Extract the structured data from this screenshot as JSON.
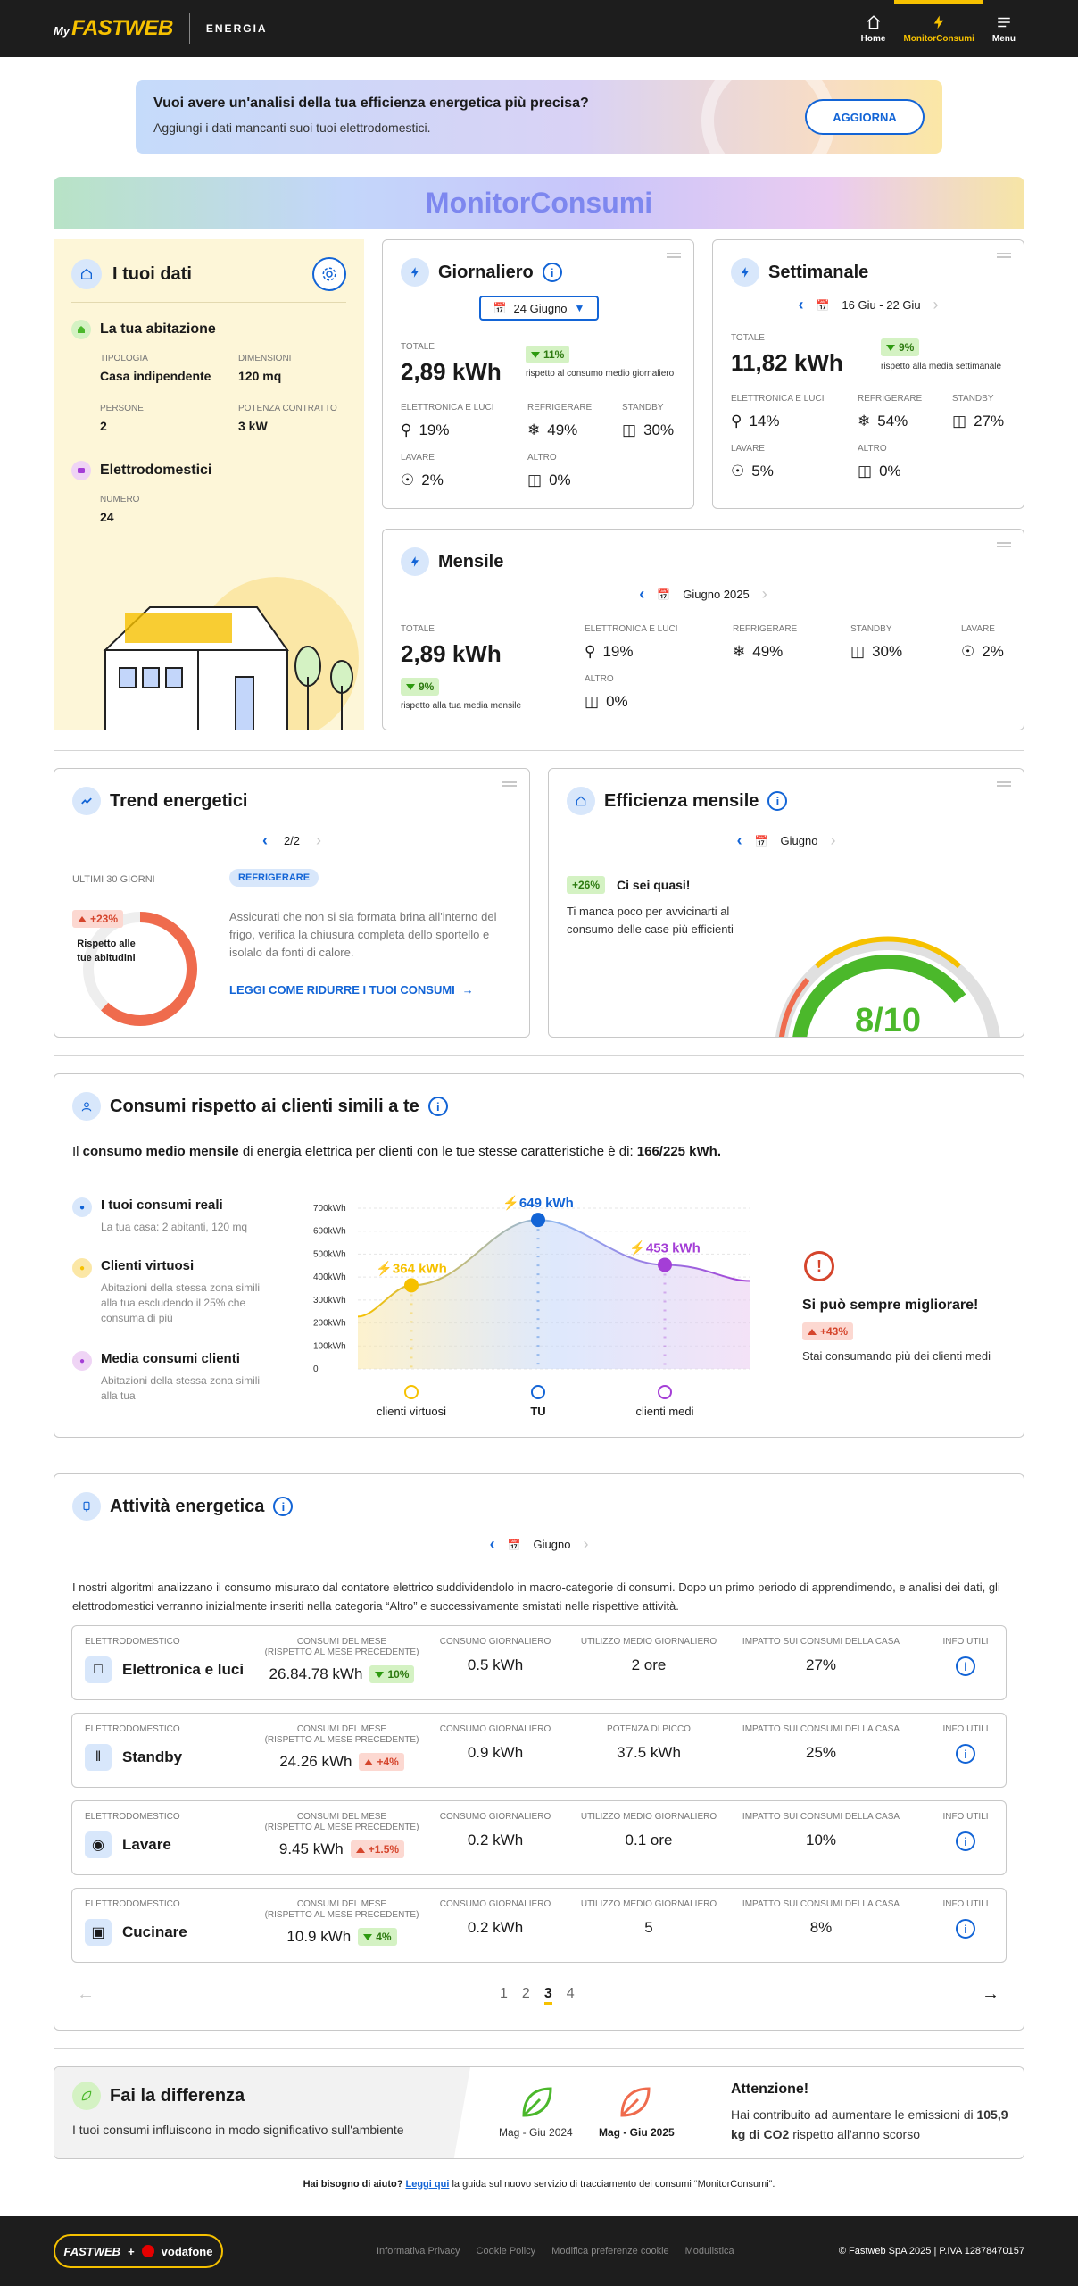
{
  "header": {
    "logo_my": "My",
    "logo_brand": "FASTWEB",
    "section": "ENERGIA",
    "nav": [
      {
        "label": "Home",
        "icon": "home-icon"
      },
      {
        "label": "MonitorConsumi",
        "icon": "bolt-icon",
        "active": true
      },
      {
        "label": "Menu",
        "icon": "menu-icon"
      }
    ]
  },
  "banner": {
    "title": "Vuoi avere un'analisi della tua efficienza energetica più precisa?",
    "subtitle": "Aggiungi i dati mancanti suoi tuoi elettrodomestici.",
    "button": "AGGIORNA"
  },
  "page_title": "MonitorConsumi",
  "your_data": {
    "title": "I tuoi dati",
    "home_title": "La tua abitazione",
    "fields": [
      {
        "label": "TIPOLOGIA",
        "value": "Casa indipendente"
      },
      {
        "label": "DIMENSIONI",
        "value": "120 mq"
      },
      {
        "label": "PERSONE",
        "value": "2"
      },
      {
        "label": "POTENZA CONTRATTO",
        "value": "3 kW"
      }
    ],
    "appliances_title": "Elettrodomestici",
    "appliances_label": "NUMERO",
    "appliances_value": "24"
  },
  "daily": {
    "title": "Giornaliero",
    "date": "24 Giugno",
    "total_label": "TOTALE",
    "total": "2,89 kWh",
    "delta": "11%",
    "delta_note": "rispetto al consumo medio giornaliero",
    "cats": [
      {
        "label": "ELETTRONICA E LUCI",
        "value": "19%",
        "icon": "lamp-icon"
      },
      {
        "label": "REFRIGERARE",
        "value": "49%",
        "icon": "snowflake-icon"
      },
      {
        "label": "STANDBY",
        "value": "30%",
        "icon": "standby-icon"
      },
      {
        "label": "LAVARE",
        "value": "2%",
        "icon": "wash-icon"
      },
      {
        "label": "ALTRO",
        "value": "0%",
        "icon": "other-icon"
      }
    ]
  },
  "weekly": {
    "title": "Settimanale",
    "date": "16 Giu - 22 Giu",
    "total_label": "TOTALE",
    "total": "11,82 kWh",
    "delta": "9%",
    "delta_note": "rispetto alla media settimanale",
    "cats": [
      {
        "label": "ELETTRONICA E LUCI",
        "value": "14%"
      },
      {
        "label": "REFRIGERARE",
        "value": "54%"
      },
      {
        "label": "STANDBY",
        "value": "27%"
      },
      {
        "label": "LAVARE",
        "value": "5%"
      },
      {
        "label": "ALTRO",
        "value": "0%"
      }
    ]
  },
  "monthly": {
    "title": "Mensile",
    "date": "Giugno 2025",
    "total_label": "TOTALE",
    "total": "2,89 kWh",
    "delta": "9%",
    "delta_note": "rispetto alla tua media mensile",
    "cats": [
      {
        "label": "ELETTRONICA E LUCI",
        "value": "19%"
      },
      {
        "label": "REFRIGERARE",
        "value": "49%"
      },
      {
        "label": "STANDBY",
        "value": "30%"
      },
      {
        "label": "LAVARE",
        "value": "2%"
      },
      {
        "label": "ALTRO",
        "value": "0%"
      }
    ]
  },
  "trend": {
    "title": "Trend energetici",
    "page": "2/2",
    "period": "ULTIMI 30 GIORNI",
    "tag": "REFRIGERARE",
    "delta": "+23%",
    "ring_label": "Rispetto alle tue abitudini",
    "ring_fraction": 0.62,
    "text": "Assicurati che non si sia formata brina all'interno del frigo, verifica la chiusura completa dello sportello e isolalo da fonti di calore.",
    "link": "LEGGI COME RIDURRE I TUOI CONSUMI"
  },
  "efficiency": {
    "title": "Efficienza mensile",
    "month": "Giugno",
    "delta": "+26%",
    "headline": "Ci sei quasi!",
    "text": "Ti manca poco per avvicinarti al consumo delle case più efficienti",
    "score": "8/10",
    "score_value": 8,
    "score_max": 10
  },
  "comparison": {
    "title": "Consumi rispetto ai clienti simili a te",
    "intro_a": "Il ",
    "intro_b": "consumo medio mensile",
    "intro_c": " di energia elettrica per clienti con le tue stesse caratteristiche è di: ",
    "intro_d": "166/225 kWh.",
    "legend": [
      {
        "title": "I tuoi consumi reali",
        "sub": "La tua casa: 2 abitanti, 120 mq",
        "color": "#1264d6"
      },
      {
        "title": "Clienti virtuosi",
        "sub": "Abitazioni della stessa zona simili alla tua escludendo il 25% che consuma di più",
        "color": "#f6c100"
      },
      {
        "title": "Media consumi clienti",
        "sub": "Abitazioni della stessa zona simili alla tua",
        "color": "#a43ed6"
      }
    ],
    "side_title": "Si può sempre migliorare!",
    "side_delta": "+43%",
    "side_text": "Stai consumando più dei clienti medi"
  },
  "chart_data": {
    "type": "line",
    "x": [
      "clienti virtuosi",
      "TU",
      "clienti medi"
    ],
    "values": [
      364,
      649,
      453
    ],
    "point_labels": [
      "364 kWh",
      "649 kWh",
      "453 kWh"
    ],
    "colors": [
      "#f6c100",
      "#1264d6",
      "#a43ed6"
    ],
    "y_ticks": [
      "0",
      "100kWh",
      "200kWh",
      "300kWh",
      "400kWh",
      "500kWh",
      "600kWh",
      "700kWh"
    ],
    "ylim": [
      0,
      700
    ]
  },
  "activity": {
    "title": "Attività energetica",
    "month": "Giugno",
    "text": "I nostri algoritmi analizzano il consumo misurato dal contatore elettrico suddividendolo in macro-categorie di consumi. Dopo un primo periodo di apprendimendo, e analisi dei dati, gli elettrodomestici verranno inizialmente inseriti nella categoria “Altro” e successivamente smistati nelle rispettive attività.",
    "rows": [
      {
        "h1": "ELETTRODOMESTICO",
        "name": "Elettronica e luci",
        "h2a": "CONSUMI DEL MESE",
        "h2b": "(rispetto al mese precedente)",
        "monthly": "26.84.78 kWh",
        "delta": "10%",
        "dir": "down",
        "h3": "CONSUMO GIORNALIERO",
        "daily": "0.5 kWh",
        "h4": "UTILIZZO MEDIO GIORNALIERO",
        "v4": "2 ore",
        "h5": "IMPATTO SUI CONSUMI DELLA CASA",
        "impact": "27%",
        "h6": "INFO UTILI"
      },
      {
        "h1": "ELETTRODOMESTICO",
        "name": "Standby",
        "h2a": "CONSUMI DEL MESE",
        "h2b": "(rispetto al mese precedente)",
        "monthly": "24.26 kWh",
        "delta": "+4%",
        "dir": "up",
        "h3": "CONSUMO GIORNALIERO",
        "daily": "0.9 kWh",
        "h4": "POTENZA DI PICCO",
        "v4": "37.5 kWh",
        "h5": "IMPATTO SUI CONSUMI DELLA CASA",
        "impact": "25%",
        "h6": "INFO UTILI"
      },
      {
        "h1": "ELETTRODOMESTICO",
        "name": "Lavare",
        "h2a": "CONSUMI DEL MESE",
        "h2b": "(rispetto al mese precedente)",
        "monthly": "9.45 kWh",
        "delta": "+1.5%",
        "dir": "up",
        "h3": "CONSUMO GIORNALIERO",
        "daily": "0.2 kWh",
        "h4": "UTILIZZO MEDIO GIORNALIERO",
        "v4": "0.1 ore",
        "h5": "IMPATTO SUI CONSUMI DELLA CASA",
        "impact": "10%",
        "h6": "INFO UTILI"
      },
      {
        "h1": "ELETTRODOMESTICO",
        "name": "Cucinare",
        "h2a": "CONSUMI DEL MESE",
        "h2b": "(rispetto al mese precedente)",
        "monthly": "10.9 kWh",
        "delta": "4%",
        "dir": "down",
        "h3": "CONSUMO GIORNALIERO",
        "daily": "0.2 kWh",
        "h4": "UTILIZZO MEDIO GIORNALIERO",
        "v4": "5",
        "h5": "IMPATTO SUI CONSUMI DELLA CASA",
        "impact": "8%",
        "h6": "INFO UTILI"
      }
    ],
    "pages": [
      "1",
      "2",
      "3",
      "4"
    ],
    "current_page": "3"
  },
  "difference": {
    "title": "Fai la differenza",
    "text": "I tuoi consumi influiscono in modo significativo sull'ambiente",
    "p1": "Mag - Giu 2024",
    "p2": "Mag - Giu 2025",
    "alert_title": "Attenzione!",
    "alert_a": "Hai contribuito ad aumentare le emissioni di ",
    "alert_b": "105,9 kg di CO2",
    "alert_c": " rispetto all'anno scorso"
  },
  "help": {
    "a": "Hai bisogno di aiuto? ",
    "link": "Leggi qui",
    "b": " la guida sul nuovo servizio di tracciamento dei consumi “MonitorConsumi”."
  },
  "footer": {
    "logo_a": "FASTWEB",
    "logo_plus": "+",
    "logo_b": "vodafone",
    "links": [
      "Informativa Privacy",
      "Cookie Policy",
      "Modifica preferenze cookie",
      "Modulistica"
    ],
    "copyright": "© Fastweb SpA 2025 | P.IVA 12878470157"
  }
}
